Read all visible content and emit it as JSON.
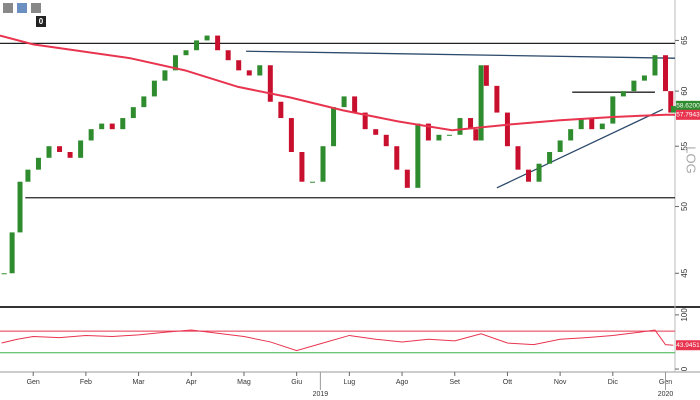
{
  "toolbar": {
    "counter": "0"
  },
  "chart_data": [
    {
      "type": "candle-line",
      "log_scale": true,
      "scale_label": "LOG",
      "up_color": "#2e8b2e",
      "down_color": "#c8102e",
      "xlim": [
        -0.63,
        12.18
      ],
      "ylim": [
        42.8,
        68.2
      ],
      "xticks": [
        {
          "value": 0,
          "label": "Gen"
        },
        {
          "value": 1,
          "label": "Feb"
        },
        {
          "value": 2,
          "label": "Mar"
        },
        {
          "value": 3,
          "label": "Apr"
        },
        {
          "value": 4,
          "label": "Mag"
        },
        {
          "value": 5,
          "label": "Giu"
        },
        {
          "value": 6,
          "label": "Lug"
        },
        {
          "value": 7,
          "label": "Ago"
        },
        {
          "value": 8,
          "label": "Set"
        },
        {
          "value": 9,
          "label": "Ott"
        },
        {
          "value": 10,
          "label": "Nov"
        },
        {
          "value": 11,
          "label": "Dic"
        },
        {
          "value": 12,
          "label": "Gen"
        }
      ],
      "year_labels": [
        {
          "value": 5.45,
          "label": "2019"
        },
        {
          "value": 12,
          "label": "2020"
        }
      ],
      "yticks": [
        45,
        50,
        55,
        60,
        65
      ],
      "series": [
        {
          "name": "Close",
          "x": [
            -0.55,
            -0.4,
            -0.25,
            -0.1,
            0.1,
            0.3,
            0.5,
            0.7,
            0.9,
            1.1,
            1.3,
            1.5,
            1.7,
            1.9,
            2.1,
            2.3,
            2.5,
            2.7,
            2.9,
            3.1,
            3.3,
            3.5,
            3.7,
            3.9,
            4.1,
            4.3,
            4.5,
            4.7,
            4.9,
            5.1,
            5.3,
            5.5,
            5.7,
            5.9,
            6.1,
            6.3,
            6.5,
            6.7,
            6.9,
            7.1,
            7.3,
            7.5,
            7.7,
            7.9,
            8.1,
            8.3,
            8.4,
            8.5,
            8.6,
            8.8,
            9.0,
            9.2,
            9.4,
            9.6,
            9.8,
            10.0,
            10.2,
            10.4,
            10.6,
            10.8,
            11.0,
            11.2,
            11.4,
            11.6,
            11.8,
            12.0,
            12.1,
            12.15
          ],
          "values": [
            45,
            48,
            52,
            53,
            54,
            55,
            54.5,
            54,
            55.5,
            56.5,
            57,
            56.5,
            57.5,
            58.5,
            59.5,
            61,
            62,
            63.5,
            64,
            65,
            65.5,
            64,
            63,
            62,
            61.5,
            62.5,
            59,
            57.5,
            54.5,
            52,
            52,
            55,
            58.5,
            59.5,
            58,
            56.5,
            56,
            55,
            53,
            51.5,
            57,
            55.5,
            56,
            56,
            57.5,
            56.5,
            55.5,
            62.5,
            60.5,
            58,
            55,
            53,
            52,
            53.5,
            54.5,
            55.5,
            56.5,
            57.5,
            56.5,
            57,
            59.5,
            60,
            61,
            61.5,
            63.5,
            60,
            58,
            58.6
          ]
        },
        {
          "name": "MA 200",
          "color": "#e8344e",
          "x": [
            -0.63,
            0,
            1.84,
            2.88,
            3.89,
            4.88,
            5.88,
            6.92,
            7.95,
            9.0,
            10.0,
            11.0,
            12.0,
            12.18
          ],
          "values": [
            65.5,
            64.6,
            63.2,
            62.0,
            60.4,
            59.4,
            58.2,
            57.2,
            56.4,
            56.9,
            57.3,
            57.6,
            57.8,
            57.8
          ]
        }
      ],
      "lines": [
        {
          "color": "#222",
          "x": [
            -0.63,
            12.18
          ],
          "y": [
            64.7,
            64.7
          ]
        },
        {
          "color": "#222",
          "x": [
            -0.15,
            12.18
          ],
          "y": [
            50.7,
            50.7
          ]
        },
        {
          "color": "#2c4a6b",
          "x": [
            4.04,
            12.18
          ],
          "y": [
            63.9,
            63.2
          ]
        },
        {
          "color": "#2c4a6b",
          "x": [
            8.8,
            11.95
          ],
          "y": [
            51.5,
            58.3
          ]
        },
        {
          "color": "#222",
          "x": [
            10.23,
            11.8
          ],
          "y": [
            59.9,
            59.9
          ]
        }
      ],
      "price_tags": [
        {
          "value": 58.62,
          "label": "58.6200",
          "color": "#2e8b2e"
        },
        {
          "value": 57.7943,
          "label": "57.7943",
          "color": "#e8344e"
        }
      ]
    },
    {
      "type": "line",
      "xlim": [
        -0.63,
        12.18
      ],
      "ylim": [
        -5.5,
        109
      ],
      "yticks": [
        0,
        100
      ],
      "ref_lines": [
        {
          "value": 70,
          "color": "#e8344e"
        },
        {
          "value": 30,
          "color": "#3cb44b"
        }
      ],
      "series": [
        {
          "name": "RSI",
          "color": "#e8344e",
          "x": [
            -0.6,
            -0.3,
            0,
            0.5,
            1,
            1.5,
            2,
            2.5,
            3,
            3.5,
            4,
            4.5,
            5,
            5.5,
            6,
            6.5,
            7,
            7.5,
            8,
            8.5,
            9,
            9.5,
            10,
            10.5,
            11,
            11.5,
            11.8,
            12.0,
            12.15
          ],
          "values": [
            48,
            55,
            60,
            58,
            62,
            60,
            63,
            68,
            72,
            66,
            60,
            50,
            34,
            48,
            62,
            55,
            50,
            55,
            52,
            65,
            48,
            45,
            55,
            58,
            62,
            68,
            72,
            45,
            44
          ]
        }
      ],
      "price_tags": [
        {
          "value": 43.9451,
          "label": "43.9451",
          "color": "#e8344e"
        }
      ]
    }
  ]
}
